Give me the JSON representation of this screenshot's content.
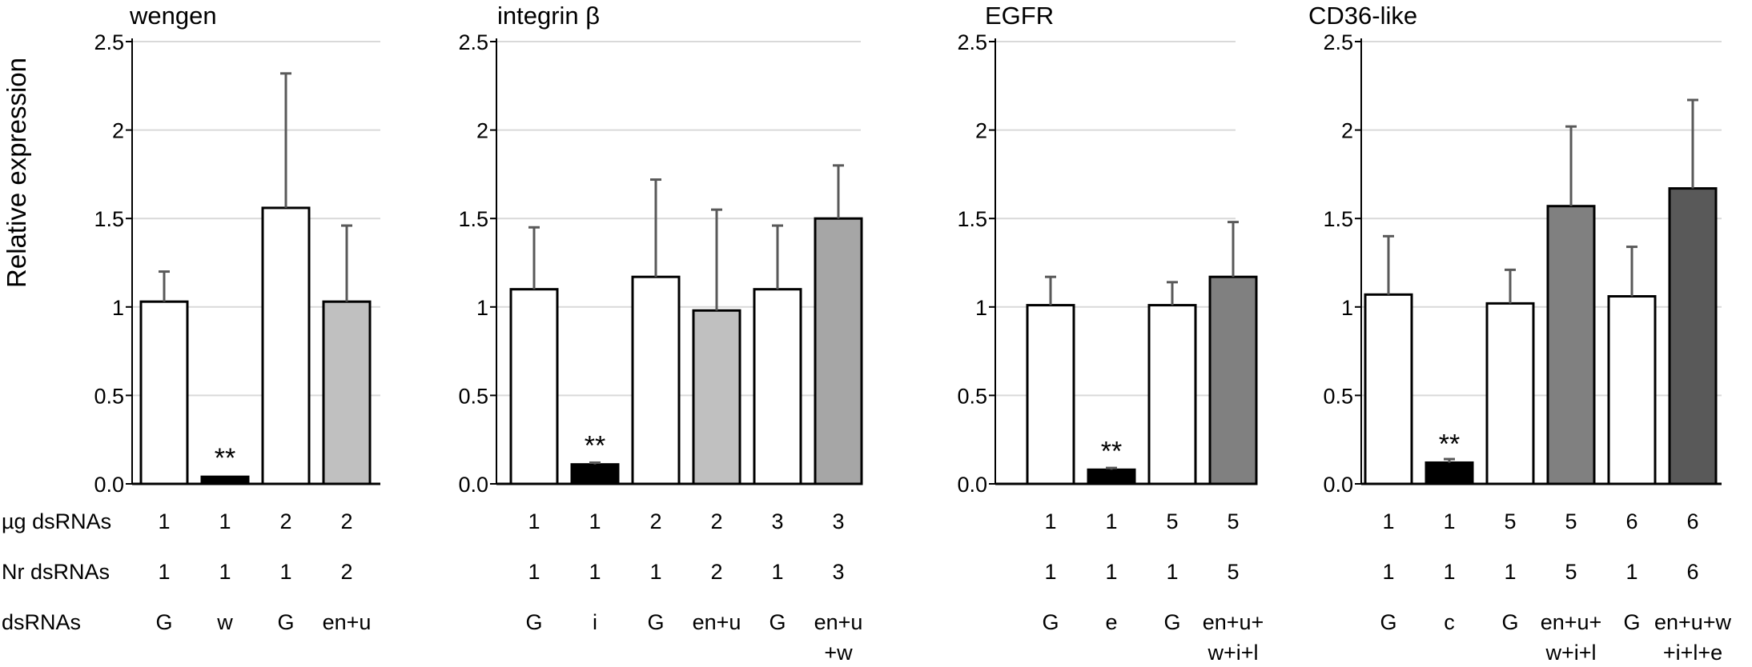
{
  "figure": {
    "ylabel": "Relative expression",
    "row_labels": [
      "µg dsRNAs",
      "Nr dsRNAs",
      "dsRNAs"
    ]
  },
  "chart_data": [
    {
      "type": "bar",
      "title": "wengen",
      "ylabel": "Relative expression",
      "ylim": [
        0,
        2.5
      ],
      "yticks": [
        "0.0",
        "0.5",
        "1",
        "1.5",
        "2",
        "2.5"
      ],
      "values": [
        1.03,
        0.04,
        1.56,
        1.03
      ],
      "errors": [
        0.17,
        0.0,
        0.76,
        0.43
      ],
      "colors": [
        "#ffffff",
        "#000000",
        "#ffffff",
        "#c0c0c0"
      ],
      "significance": [
        "",
        "**",
        "",
        ""
      ],
      "ug_dsRNAs": [
        "1",
        "1",
        "2",
        "2"
      ],
      "nr_dsRNAs": [
        "1",
        "1",
        "1",
        "2"
      ],
      "dsRNAs": [
        [
          "G"
        ],
        [
          "w"
        ],
        [
          "G"
        ],
        [
          "en+u"
        ]
      ]
    },
    {
      "type": "bar",
      "title": "integrin β",
      "ylabel": "Relative expression",
      "ylim": [
        0,
        2.5
      ],
      "yticks": [
        "0.0",
        "0.5",
        "1",
        "1.5",
        "2",
        "2.5"
      ],
      "values": [
        1.1,
        0.11,
        1.17,
        0.98,
        1.1,
        1.5
      ],
      "errors": [
        0.35,
        0.01,
        0.55,
        0.57,
        0.36,
        0.3
      ],
      "colors": [
        "#ffffff",
        "#000000",
        "#ffffff",
        "#c0c0c0",
        "#ffffff",
        "#a6a6a6"
      ],
      "significance": [
        "",
        "**",
        "",
        "",
        "",
        ""
      ],
      "ug_dsRNAs": [
        "1",
        "1",
        "2",
        "2",
        "3",
        "3"
      ],
      "nr_dsRNAs": [
        "1",
        "1",
        "1",
        "2",
        "1",
        "3"
      ],
      "dsRNAs": [
        [
          "G"
        ],
        [
          "i"
        ],
        [
          "G"
        ],
        [
          "en+u"
        ],
        [
          "G"
        ],
        [
          "en+u",
          "+w"
        ]
      ]
    },
    {
      "type": "bar",
      "title": "EGFR",
      "ylabel": "Relative expression",
      "ylim": [
        0,
        2.5
      ],
      "yticks": [
        "0.0",
        "0.5",
        "1",
        "1.5",
        "2",
        "2.5"
      ],
      "values": [
        1.01,
        0.08,
        1.01,
        1.17
      ],
      "errors": [
        0.16,
        0.01,
        0.13,
        0.31
      ],
      "colors": [
        "#ffffff",
        "#000000",
        "#ffffff",
        "#808080"
      ],
      "significance": [
        "",
        "**",
        "",
        ""
      ],
      "ug_dsRNAs": [
        "1",
        "1",
        "5",
        "5"
      ],
      "nr_dsRNAs": [
        "1",
        "1",
        "1",
        "5"
      ],
      "dsRNAs": [
        [
          "G"
        ],
        [
          "e"
        ],
        [
          "G"
        ],
        [
          "en+u+",
          "w+i+l"
        ]
      ]
    },
    {
      "type": "bar",
      "title": "CD36-like",
      "ylabel": "Relative expression",
      "ylim": [
        0,
        2.5
      ],
      "yticks": [
        "0.0",
        "0.5",
        "1",
        "1.5",
        "2",
        "2.5"
      ],
      "values": [
        1.07,
        0.12,
        1.02,
        1.57,
        1.06,
        1.67
      ],
      "errors": [
        0.33,
        0.02,
        0.19,
        0.45,
        0.28,
        0.5
      ],
      "colors": [
        "#ffffff",
        "#000000",
        "#ffffff",
        "#808080",
        "#ffffff",
        "#595959"
      ],
      "significance": [
        "",
        "**",
        "",
        "",
        "",
        ""
      ],
      "ug_dsRNAs": [
        "1",
        "1",
        "5",
        "5",
        "6",
        "6"
      ],
      "nr_dsRNAs": [
        "1",
        "1",
        "1",
        "5",
        "1",
        "6"
      ],
      "dsRNAs": [
        [
          "G"
        ],
        [
          "c"
        ],
        [
          "G"
        ],
        [
          "en+u+",
          "w+i+l"
        ],
        [
          "G"
        ],
        [
          "en+u+w",
          "+i+l+e"
        ]
      ]
    }
  ]
}
